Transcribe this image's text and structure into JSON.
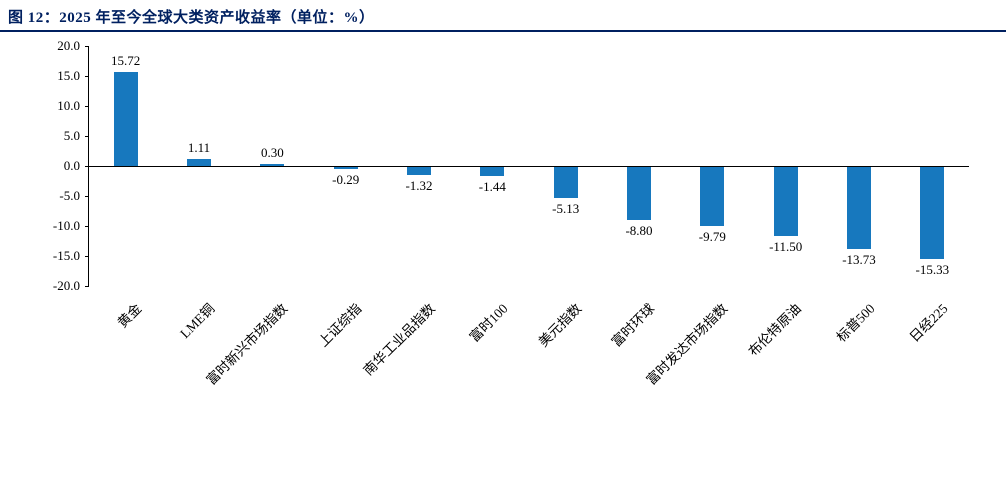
{
  "header": {
    "title": "图 12：2025 年至今全球大类资产收益率（单位：%）"
  },
  "colors": {
    "title": "#002060",
    "rule": "#002060",
    "bar": "#1778BE",
    "axis": "#000000"
  },
  "chart_data": {
    "type": "bar",
    "title": "2025 年至今全球大类资产收益率（单位：%）",
    "categories": [
      "黄金",
      "LME铜",
      "富时新兴市场指数",
      "上证综指",
      "南华工业品指数",
      "富时100",
      "美元指数",
      "富时环球",
      "富时发达市场指数",
      "布伦特原油",
      "标普500",
      "日经225"
    ],
    "values": [
      15.72,
      1.11,
      0.3,
      -0.29,
      -1.32,
      -1.44,
      -5.13,
      -8.8,
      -9.79,
      -11.5,
      -13.73,
      -15.33
    ],
    "value_labels": [
      "15.72",
      "1.11",
      "0.30",
      "-0.29",
      "-1.32",
      "-1.44",
      "-5.13",
      "-8.80",
      "-9.79",
      "-11.50",
      "-13.73",
      "-15.33"
    ],
    "xlabel": "",
    "ylabel": "",
    "ylim": [
      -20,
      20
    ],
    "ytick_step": 5,
    "grid": "off",
    "legend": "none",
    "bar_color": "#1778BE"
  }
}
